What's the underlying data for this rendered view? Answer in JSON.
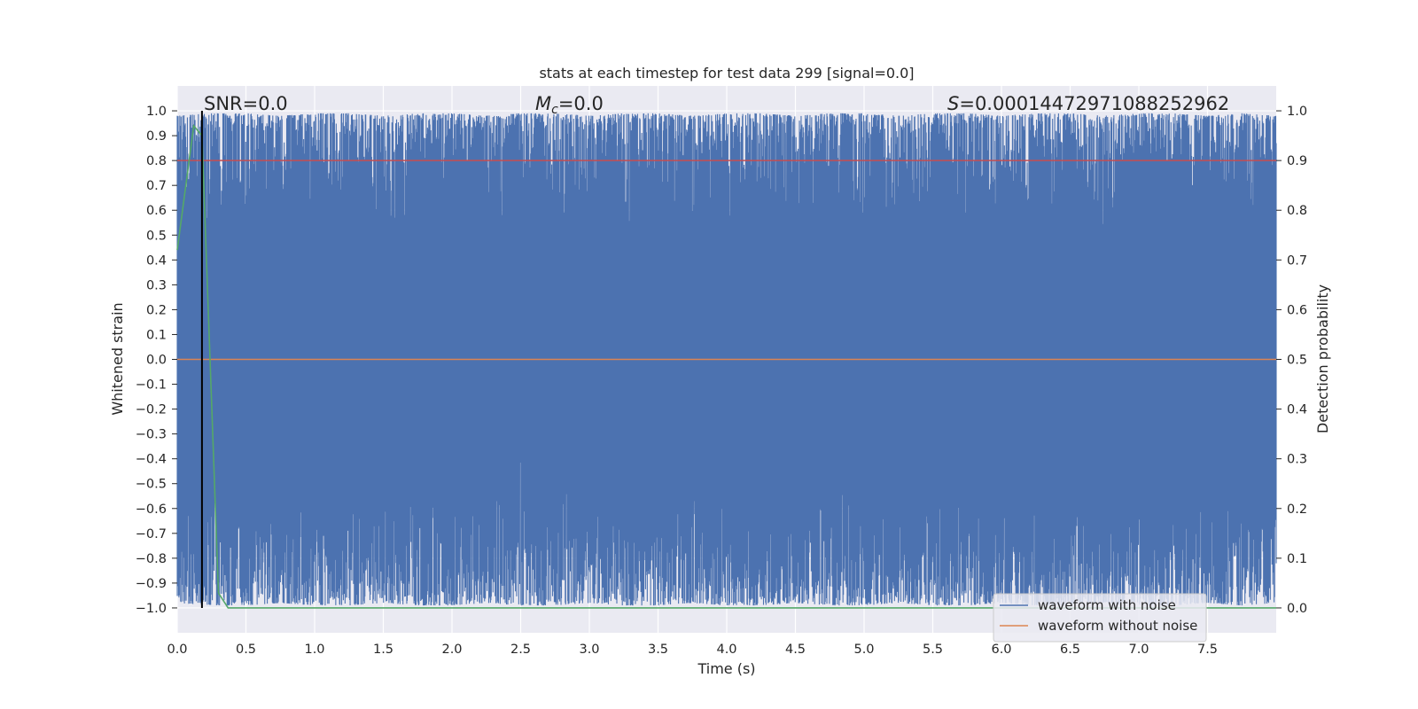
{
  "chart_data": {
    "type": "line",
    "title": "stats at each timestep for test data 299 [signal=0.0]",
    "xlabel": "Time (s)",
    "ylabel": "Whitened strain",
    "y2label": "Detection probability",
    "xlim": [
      0.0,
      8.0
    ],
    "ylim": [
      -1.1,
      1.1
    ],
    "y2lim": [
      -0.05,
      1.05
    ],
    "xticks": [
      "0.0",
      "0.5",
      "1.0",
      "1.5",
      "2.0",
      "2.5",
      "3.0",
      "3.5",
      "4.0",
      "4.5",
      "5.0",
      "5.5",
      "6.0",
      "6.5",
      "7.0",
      "7.5"
    ],
    "yticks": [
      "1.0",
      "0.9",
      "0.8",
      "0.7",
      "0.6",
      "0.5",
      "0.4",
      "0.3",
      "0.2",
      "0.1",
      "0.0",
      "−0.1",
      "−0.2",
      "−0.3",
      "−0.4",
      "−0.5",
      "−0.6",
      "−0.7",
      "−0.8",
      "−0.9",
      "−1.0"
    ],
    "y2ticks": [
      "1.0",
      "0.9",
      "0.8",
      "0.7",
      "0.6",
      "0.5",
      "0.4",
      "0.3",
      "0.2",
      "0.1",
      "0.0"
    ],
    "annotations": {
      "snr": "SNR=0.0",
      "mc_symbol": "M",
      "mc_sub": "c",
      "mc_value": "=0.0",
      "s_symbol": "S",
      "s_value": "=0.00014472971088252962"
    },
    "series": [
      {
        "name": "waveform with noise",
        "color": "#4c72b0",
        "axis": "left",
        "description_note": "dense noise between about -1.0 and 1.0",
        "envelope": {
          "x": [
            0.0,
            0.25,
            0.5,
            0.75,
            1.0,
            1.25,
            1.5,
            1.75,
            2.0,
            2.25,
            2.5,
            2.75,
            3.0,
            3.25,
            3.5,
            3.75,
            4.0,
            4.25,
            4.5,
            4.75,
            5.0,
            5.25,
            5.5,
            5.75,
            6.0,
            6.25,
            6.5,
            6.75,
            7.0,
            7.25,
            7.5,
            7.75,
            8.0
          ],
          "upper": [
            0.98,
            0.99,
            0.99,
            0.98,
            0.99,
            0.99,
            0.98,
            0.99,
            0.99,
            0.98,
            0.99,
            0.99,
            0.98,
            0.99,
            0.99,
            0.98,
            0.99,
            0.99,
            0.98,
            0.99,
            0.99,
            0.98,
            0.99,
            0.99,
            0.98,
            0.99,
            0.99,
            0.98,
            0.99,
            0.99,
            0.98,
            0.99,
            0.98
          ],
          "lower": [
            -0.98,
            -0.99,
            -0.99,
            -0.98,
            -0.99,
            -0.99,
            -0.98,
            -0.99,
            -0.99,
            -0.98,
            -0.99,
            -0.99,
            -0.98,
            -0.99,
            -0.99,
            -0.98,
            -0.99,
            -0.99,
            -0.98,
            -0.99,
            -0.99,
            -0.98,
            -0.99,
            -0.99,
            -0.98,
            -0.99,
            -0.99,
            -0.98,
            -0.99,
            -0.99,
            -0.98,
            -0.99,
            -0.98
          ]
        }
      },
      {
        "name": "waveform without noise",
        "color": "#dd8452",
        "axis": "left",
        "x": [
          0.0,
          8.0
        ],
        "y": [
          0.0,
          0.0
        ]
      },
      {
        "name": "",
        "color": "#55a868",
        "axis": "right",
        "x": [
          0.0,
          0.12,
          0.18,
          0.3,
          0.37,
          0.5,
          1.0,
          2.0,
          4.0,
          6.0,
          8.0
        ],
        "y": [
          0.72,
          0.97,
          0.95,
          0.03,
          0.0,
          0.0,
          0.0,
          0.0,
          0.0,
          0.0,
          0.0
        ]
      },
      {
        "name": "",
        "color": "#c44e52",
        "axis": "right",
        "x": [
          0.0,
          8.0
        ],
        "y": [
          0.9,
          0.9
        ]
      }
    ],
    "vline": {
      "x": 0.18,
      "color": "#000000"
    },
    "grid": true,
    "legend_placement": "lower-right",
    "legend": [
      "waveform with noise",
      "waveform without noise"
    ]
  }
}
